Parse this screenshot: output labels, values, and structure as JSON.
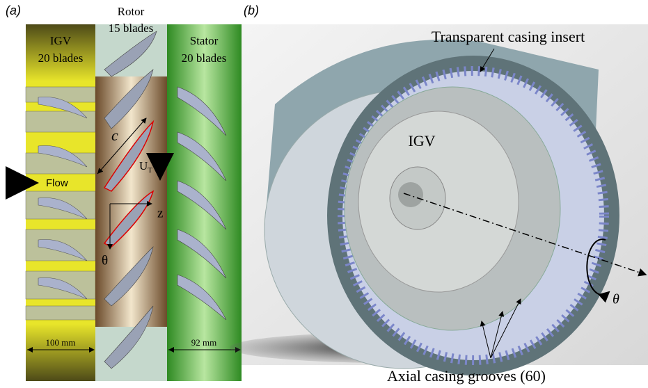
{
  "panel_a": {
    "label": "(a)",
    "igv": {
      "title": "IGV",
      "count": "20 blades",
      "width": "100 mm"
    },
    "rotor": {
      "title": "Rotor",
      "count": "15 blades"
    },
    "stator": {
      "title": "Stator",
      "count": "20 blades",
      "width": "92 mm"
    },
    "flow": "Flow",
    "chord": "c",
    "velocity": {
      "symbol": "U",
      "subscript": "T"
    },
    "axial": "z",
    "tangential": "θ"
  },
  "panel_b": {
    "label": "(b)",
    "casing": "Transparent casing insert",
    "igv": "IGV",
    "grooves": "Axial casing grooves (60)",
    "rotation": "θ"
  }
}
